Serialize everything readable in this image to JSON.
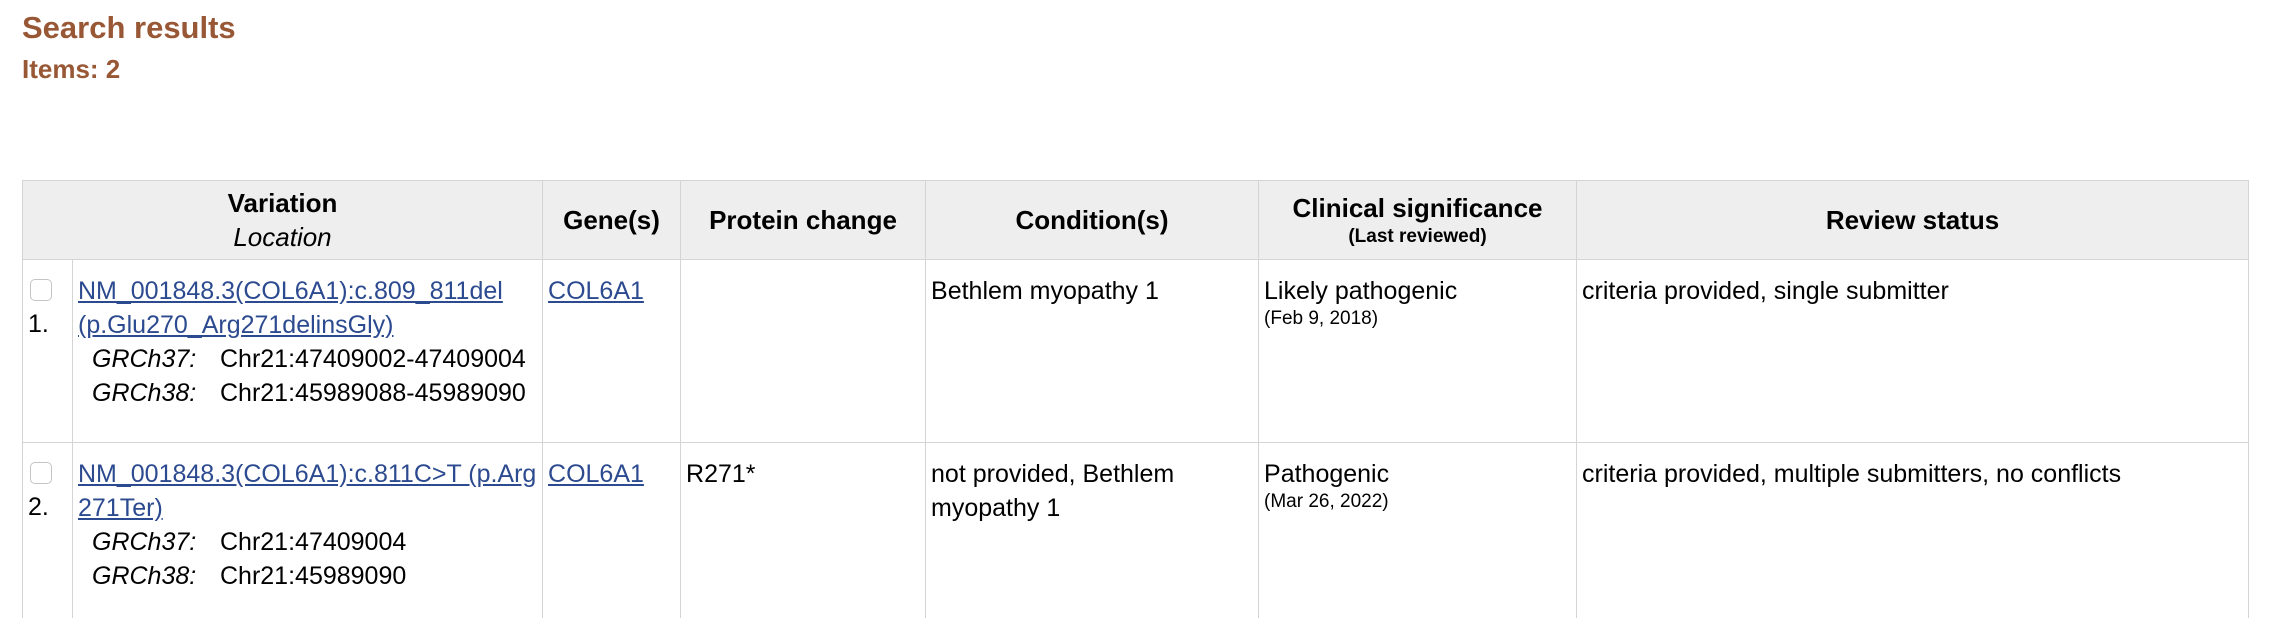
{
  "header": {
    "title": "Search results",
    "items_count": "Items: 2"
  },
  "table": {
    "columns": {
      "variation": "Variation",
      "location": "Location",
      "genes": "Gene(s)",
      "protein_change": "Protein change",
      "conditions": "Condition(s)",
      "clinical_significance": "Clinical significance",
      "last_reviewed": "(Last reviewed)",
      "review_status": "Review status"
    },
    "rows": [
      {
        "number": "1.",
        "variation": "NM_001848.3(COL6A1):c.809_811del (p.Glu270_Arg271delinsGly)",
        "grch37_label": "GRCh37:",
        "grch37_value": "Chr21:47409002-47409004",
        "grch38_label": "GRCh38:",
        "grch38_value": "Chr21:45989088-45989090",
        "gene": "COL6A1",
        "protein_change": "",
        "condition": "Bethlem myopathy 1",
        "significance": "Likely pathogenic",
        "reviewed_date": "(Feb 9, 2018)",
        "review_status": "criteria provided, single submitter"
      },
      {
        "number": "2.",
        "variation": "NM_001848.3(COL6A1):c.811C>T (p.Arg271Ter)",
        "grch37_label": "GRCh37:",
        "grch37_value": "Chr21:47409004",
        "grch38_label": "GRCh38:",
        "grch38_value": "Chr21:45989090",
        "gene": "COL6A1",
        "protein_change": "R271*",
        "condition": "not provided, Bethlem myopathy 1",
        "significance": "Pathogenic",
        "reviewed_date": "(Mar 26, 2022)",
        "review_status": "criteria provided, multiple submitters, no conflicts"
      }
    ]
  },
  "colors": {
    "heading": "#985735",
    "link": "#2c4a8f",
    "header_bg": "#eeeeee",
    "border": "#d4d4d4"
  }
}
